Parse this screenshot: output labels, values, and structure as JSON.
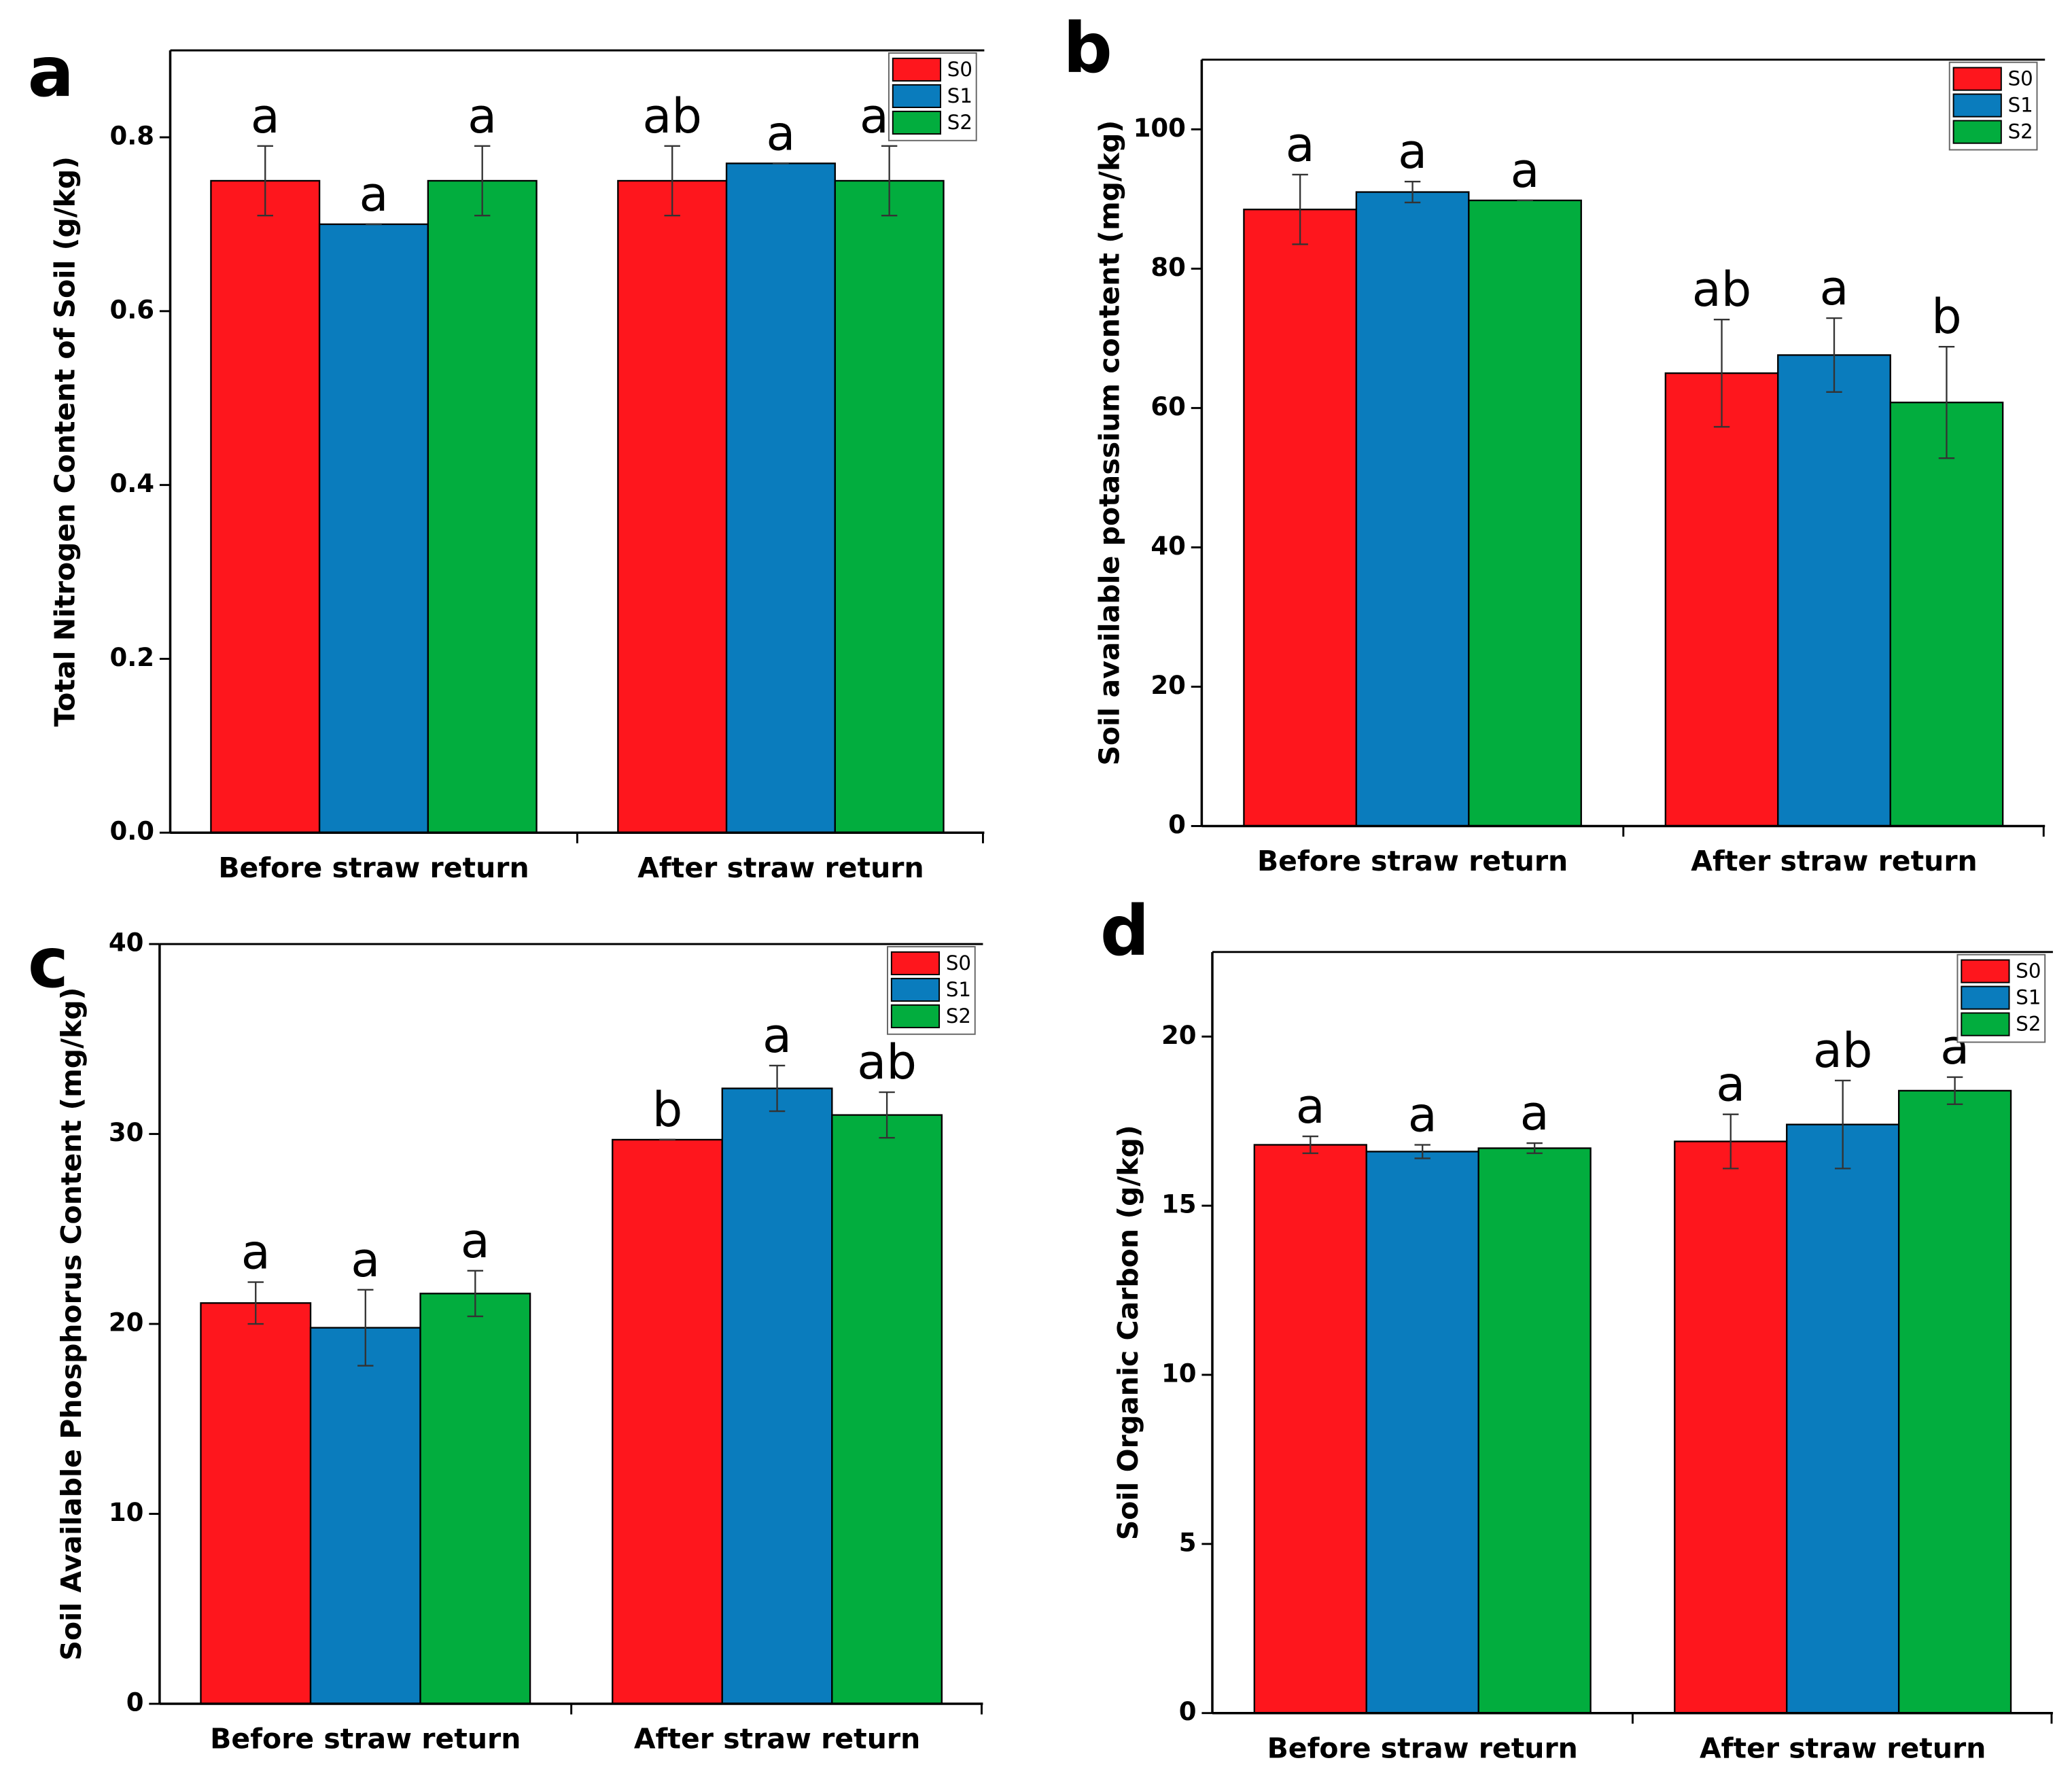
{
  "chart_data": [
    {
      "type": "bar",
      "panel": "a",
      "ylabel": "Total Nitrogen Content of Soil (g/kg)",
      "categories": [
        "Before straw return",
        "After straw return"
      ],
      "series": [
        {
          "name": "S0",
          "color": "#fe161d",
          "values": [
            0.75,
            0.75
          ],
          "errors": [
            0.04,
            0.04
          ],
          "letters": [
            "a",
            "ab"
          ]
        },
        {
          "name": "S1",
          "color": "#0a7cbd",
          "values": [
            0.7,
            0.77
          ],
          "errors": [
            0,
            0
          ],
          "letters": [
            "a",
            "a"
          ]
        },
        {
          "name": "S2",
          "color": "#02ad3e",
          "values": [
            0.75,
            0.75
          ],
          "errors": [
            0.04,
            0.04
          ],
          "letters": [
            "a",
            "ab"
          ]
        }
      ],
      "ylim": [
        0,
        0.9
      ],
      "yticks": [
        {
          "value": 0,
          "label": "0.0"
        },
        {
          "value": 0.2,
          "label": "0.2"
        },
        {
          "value": 0.4,
          "label": "0.4"
        },
        {
          "value": 0.6,
          "label": "0.6"
        },
        {
          "value": 0.8,
          "label": "0.8"
        }
      ],
      "legend": "upper right"
    },
    {
      "type": "bar",
      "panel": "b",
      "ylabel": "Soil available potassium content (mg/kg)",
      "categories": [
        "Before straw return",
        "After straw return"
      ],
      "series": [
        {
          "name": "S0",
          "color": "#fe161d",
          "values": [
            88.5,
            65
          ],
          "errors": [
            5,
            7.7
          ],
          "letters": [
            "a",
            "ab"
          ]
        },
        {
          "name": "S1",
          "color": "#0a7cbd",
          "values": [
            91,
            67.6
          ],
          "errors": [
            1.5,
            5.3
          ],
          "letters": [
            "a",
            "a"
          ]
        },
        {
          "name": "S2",
          "color": "#02ad3e",
          "values": [
            89.8,
            60.8
          ],
          "errors": [
            0,
            8
          ],
          "letters": [
            "a",
            "b"
          ]
        }
      ],
      "ylim": [
        0,
        110
      ],
      "yticks": [
        0,
        20,
        40,
        60,
        80,
        100
      ],
      "legend": "upper right"
    },
    {
      "type": "bar",
      "panel": "c",
      "ylabel": "Soil Available Phosphorus Content (mg/kg)",
      "categories": [
        "Before straw return",
        "After straw return"
      ],
      "series": [
        {
          "name": "S0",
          "color": "#fe161d",
          "values": [
            21.1,
            29.7
          ],
          "errors": [
            1.1,
            0
          ],
          "letters": [
            "a",
            "b"
          ]
        },
        {
          "name": "S1",
          "color": "#0a7cbd",
          "values": [
            19.8,
            32.4
          ],
          "errors": [
            2,
            1.2
          ],
          "letters": [
            "a",
            "a"
          ]
        },
        {
          "name": "S2",
          "color": "#02ad3e",
          "values": [
            21.6,
            31.0
          ],
          "errors": [
            1.2,
            1.2
          ],
          "letters": [
            "a",
            "ab"
          ]
        }
      ],
      "ylim": [
        0,
        40
      ],
      "yticks": [
        0,
        10,
        20,
        30,
        40
      ],
      "legend": "upper right"
    },
    {
      "type": "bar",
      "panel": "d",
      "ylabel": "Soil Organic Carbon (g/kg)",
      "categories": [
        "Before straw return",
        "After straw return"
      ],
      "series": [
        {
          "name": "S0",
          "color": "#fe161d",
          "values": [
            16.8,
            16.9
          ],
          "errors": [
            0.25,
            0.8
          ],
          "letters": [
            "a",
            "a"
          ]
        },
        {
          "name": "S1",
          "color": "#0a7cbd",
          "values": [
            16.6,
            17.4
          ],
          "errors": [
            0.2,
            1.3
          ],
          "letters": [
            "a",
            "ab"
          ]
        },
        {
          "name": "S2",
          "color": "#02ad3e",
          "values": [
            16.7,
            18.4
          ],
          "errors": [
            0.15,
            0.4
          ],
          "letters": [
            "a",
            "a"
          ]
        }
      ],
      "ylim": [
        0,
        22.5
      ],
      "yticks": [
        0,
        5,
        10,
        15,
        20
      ],
      "legend": "upper right"
    }
  ]
}
